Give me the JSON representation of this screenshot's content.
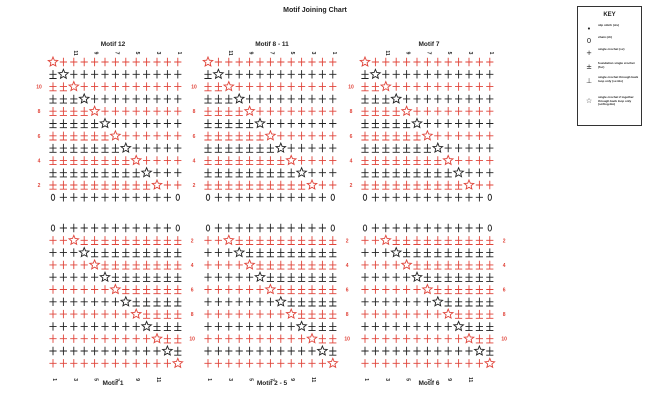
{
  "title": "Motif Joining Chart",
  "motifs": [
    {
      "id": "m12",
      "label": "Motif 12",
      "orientation": "top"
    },
    {
      "id": "m8",
      "label": "Motif 8 - 11",
      "orientation": "top"
    },
    {
      "id": "m7",
      "label": "Motif 7",
      "orientation": "top"
    },
    {
      "id": "m1",
      "label": "Motif 1",
      "orientation": "bottom"
    },
    {
      "id": "m2",
      "label": "Motif 2 - 5",
      "orientation": "bottom"
    },
    {
      "id": "m6",
      "label": "Motif 6",
      "orientation": "bottom"
    }
  ],
  "row_numbers": [
    "2",
    "4",
    "6",
    "8",
    "10"
  ],
  "column_numbers": [
    "1",
    "3",
    "5",
    "7",
    "9",
    "11"
  ],
  "key": {
    "title": "KEY",
    "items": [
      {
        "symbol": "•",
        "label": "slip stitch (sls)"
      },
      {
        "symbol": "0",
        "label": "chain (ch)"
      },
      {
        "symbol": "+",
        "label": "single crochet (sc)"
      },
      {
        "symbol": "±",
        "label": "foundation single crochet (fsc)"
      },
      {
        "symbol": "⊥",
        "label": "single crochet through back loop only (sc-blo)"
      },
      {
        "symbol": "☆",
        "label": "single crochet 2 together through back loop only (sc2tog-blo)"
      }
    ]
  },
  "colors": {
    "ink": "#222222",
    "accent": "#e0443a"
  }
}
